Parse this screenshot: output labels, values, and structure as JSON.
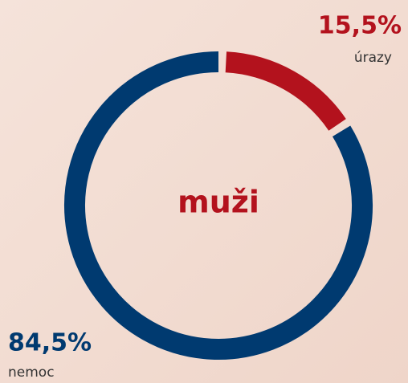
{
  "chart_data": {
    "type": "donut",
    "center_label": "muži",
    "categories": [
      "úrazy",
      "nemoc"
    ],
    "values": [
      15.5,
      84.5
    ],
    "value_labels": [
      "15,5%",
      "84,5%"
    ],
    "colors": [
      "#b3121d",
      "#003a70"
    ]
  }
}
